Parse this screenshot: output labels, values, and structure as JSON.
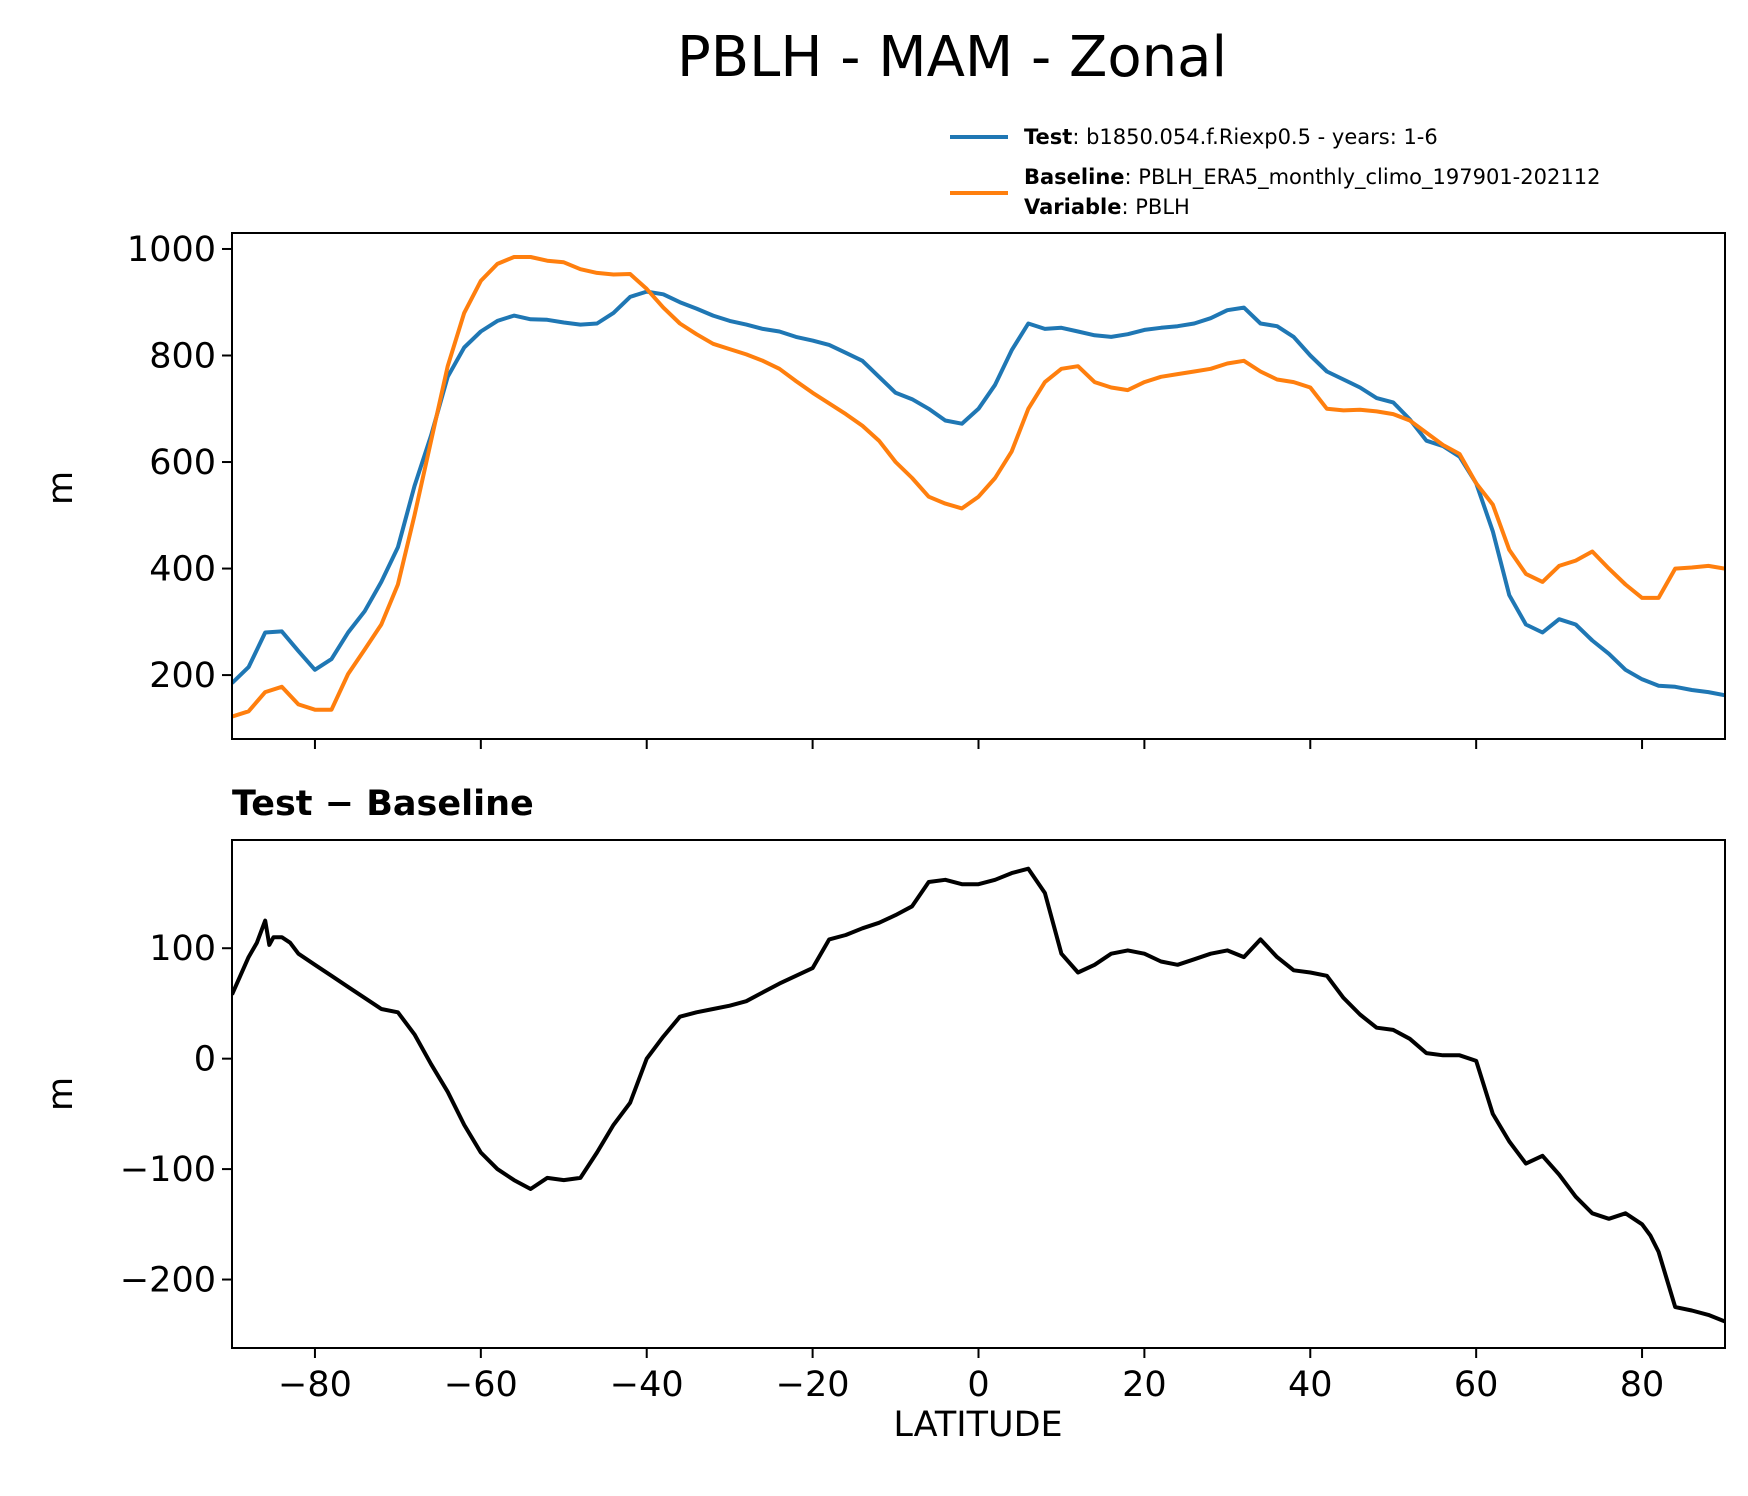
{
  "title": "PBLH - MAM - Zonal",
  "colors": {
    "test": "#1f77b4",
    "baseline": "#ff7f0e",
    "diff": "#000000"
  },
  "legend": {
    "placement": "above-top-right",
    "entries": [
      {
        "key": "Test",
        "sep": ": ",
        "text": "b1850.054.f.Riexp0.5 - years: 1-6",
        "color": "#1f77b4"
      },
      {
        "key": "Baseline",
        "sep": ": ",
        "text": "PBLH_ERA5_monthly_climo_197901-202112",
        "color": "#ff7f0e"
      },
      {
        "key": "Variable",
        "sep": ": ",
        "text": "PBLH",
        "color": null
      }
    ]
  },
  "chart_data": [
    {
      "type": "line",
      "title": "",
      "xlabel": "",
      "ylabel": "m",
      "xlim": [
        -90,
        90
      ],
      "ylim": [
        80,
        1030
      ],
      "xticks": [
        -80,
        -60,
        -40,
        -20,
        0,
        20,
        40,
        60,
        80
      ],
      "xtick_labels_shown": false,
      "yticks": [
        200,
        400,
        600,
        800,
        1000
      ],
      "ytick_labels": [
        "200",
        "400",
        "600",
        "800",
        "1000"
      ],
      "grid": false,
      "series": [
        {
          "name": "Test",
          "color": "#1f77b4",
          "x": [
            -90,
            -88,
            -86,
            -84,
            -82,
            -80,
            -78,
            -76,
            -74,
            -72,
            -70,
            -68,
            -66,
            -64,
            -62,
            -60,
            -58,
            -56,
            -54,
            -52,
            -50,
            -48,
            -46,
            -44,
            -42,
            -40,
            -38,
            -36,
            -34,
            -32,
            -30,
            -28,
            -26,
            -24,
            -22,
            -20,
            -18,
            -16,
            -14,
            -12,
            -10,
            -8,
            -6,
            -4,
            -2,
            0,
            2,
            4,
            6,
            8,
            10,
            12,
            14,
            16,
            18,
            20,
            22,
            24,
            26,
            28,
            30,
            32,
            34,
            36,
            38,
            40,
            42,
            44,
            46,
            48,
            50,
            52,
            54,
            56,
            58,
            60,
            62,
            64,
            66,
            68,
            70,
            72,
            74,
            76,
            78,
            80,
            82,
            84,
            86,
            88,
            90
          ],
          "y": [
            185,
            215,
            280,
            282,
            245,
            210,
            230,
            280,
            320,
            375,
            440,
            555,
            650,
            760,
            815,
            845,
            865,
            875,
            868,
            867,
            862,
            858,
            860,
            880,
            910,
            920,
            915,
            900,
            888,
            875,
            865,
            858,
            850,
            845,
            835,
            828,
            820,
            805,
            790,
            760,
            730,
            718,
            700,
            678,
            672,
            700,
            745,
            810,
            860,
            850,
            852,
            845,
            838,
            835,
            840,
            848,
            852,
            855,
            860,
            870,
            885,
            890,
            860,
            855,
            835,
            800,
            770,
            755,
            740,
            720,
            712,
            680,
            640,
            630,
            610,
            560,
            470,
            350,
            295,
            280,
            305,
            295,
            265,
            240,
            210,
            192,
            180,
            178,
            172,
            168,
            162
          ]
        },
        {
          "name": "Baseline",
          "color": "#ff7f0e",
          "x": [
            -90,
            -88,
            -86,
            -84,
            -82,
            -80,
            -78,
            -76,
            -74,
            -72,
            -70,
            -68,
            -66,
            -64,
            -62,
            -60,
            -58,
            -56,
            -54,
            -52,
            -50,
            -48,
            -46,
            -44,
            -42,
            -40,
            -38,
            -36,
            -34,
            -32,
            -30,
            -28,
            -26,
            -24,
            -22,
            -20,
            -18,
            -16,
            -14,
            -12,
            -10,
            -8,
            -6,
            -4,
            -2,
            0,
            2,
            4,
            6,
            8,
            10,
            12,
            14,
            16,
            18,
            20,
            22,
            24,
            26,
            28,
            30,
            32,
            34,
            36,
            38,
            40,
            42,
            44,
            46,
            48,
            50,
            52,
            54,
            56,
            58,
            60,
            62,
            64,
            66,
            68,
            70,
            72,
            74,
            76,
            78,
            80,
            82,
            84,
            86,
            88,
            90
          ],
          "y": [
            122,
            132,
            168,
            178,
            145,
            135,
            135,
            202,
            248,
            295,
            370,
            500,
            640,
            780,
            880,
            940,
            972,
            985,
            985,
            978,
            975,
            962,
            955,
            952,
            953,
            925,
            890,
            860,
            840,
            822,
            812,
            802,
            790,
            775,
            752,
            730,
            710,
            690,
            668,
            640,
            600,
            570,
            535,
            522,
            513,
            535,
            570,
            620,
            700,
            750,
            775,
            780,
            750,
            740,
            735,
            750,
            760,
            765,
            770,
            775,
            785,
            790,
            770,
            755,
            750,
            740,
            700,
            697,
            698,
            695,
            690,
            678,
            655,
            632,
            615,
            560,
            520,
            435,
            390,
            375,
            405,
            415,
            432,
            400,
            370,
            345,
            345,
            400,
            402,
            405,
            400
          ]
        }
      ]
    },
    {
      "type": "line",
      "title": "Test − Baseline",
      "xlabel": "LATITUDE",
      "ylabel": "m",
      "xlim": [
        -90,
        90
      ],
      "ylim": [
        -262,
        198
      ],
      "xticks": [
        -80,
        -60,
        -40,
        -20,
        0,
        20,
        40,
        60,
        80
      ],
      "xtick_labels": [
        "−80",
        "−60",
        "−40",
        "−20",
        "0",
        "20",
        "40",
        "60",
        "80"
      ],
      "yticks": [
        -200,
        -100,
        0,
        100
      ],
      "ytick_labels": [
        "−200",
        "−100",
        "0",
        "100"
      ],
      "grid": false,
      "series": [
        {
          "name": "",
          "color": "#000000",
          "x": [
            -90,
            -89,
            -88,
            -87,
            -86,
            -85.5,
            -85,
            -84,
            -83,
            -82,
            -80,
            -78,
            -76,
            -74,
            -72,
            -70,
            -68,
            -66,
            -64,
            -62,
            -60,
            -58,
            -56,
            -54,
            -52,
            -50,
            -48,
            -46,
            -44,
            -42,
            -40,
            -38,
            -36,
            -34,
            -32,
            -30,
            -28,
            -26,
            -24,
            -22,
            -20,
            -18,
            -16,
            -14,
            -12,
            -10,
            -8,
            -6,
            -4,
            -2,
            0,
            2,
            4,
            6,
            8,
            10,
            12,
            14,
            16,
            18,
            20,
            22,
            24,
            26,
            28,
            30,
            32,
            34,
            36,
            38,
            40,
            42,
            44,
            46,
            48,
            50,
            52,
            54,
            56,
            58,
            60,
            62,
            64,
            66,
            68,
            70,
            72,
            74,
            76,
            78,
            80,
            81,
            82,
            83,
            84,
            86,
            88,
            90
          ],
          "y": [
            58,
            75,
            92,
            105,
            125,
            103,
            110,
            110,
            105,
            95,
            85,
            75,
            65,
            55,
            45,
            42,
            22,
            -5,
            -30,
            -60,
            -85,
            -100,
            -110,
            -118,
            -108,
            -110,
            -108,
            -85,
            -60,
            -40,
            0,
            20,
            38,
            42,
            45,
            48,
            52,
            60,
            68,
            75,
            82,
            108,
            112,
            118,
            123,
            130,
            138,
            160,
            162,
            158,
            158,
            162,
            168,
            172,
            150,
            95,
            78,
            85,
            95,
            98,
            95,
            88,
            85,
            90,
            95,
            98,
            92,
            108,
            92,
            80,
            78,
            75,
            55,
            40,
            28,
            26,
            18,
            5,
            3,
            3,
            -2,
            -50,
            -75,
            -95,
            -88,
            -105,
            -125,
            -140,
            -145,
            -140,
            -150,
            -160,
            -175,
            -200,
            -225,
            -228,
            -232,
            -238
          ]
        }
      ]
    }
  ]
}
